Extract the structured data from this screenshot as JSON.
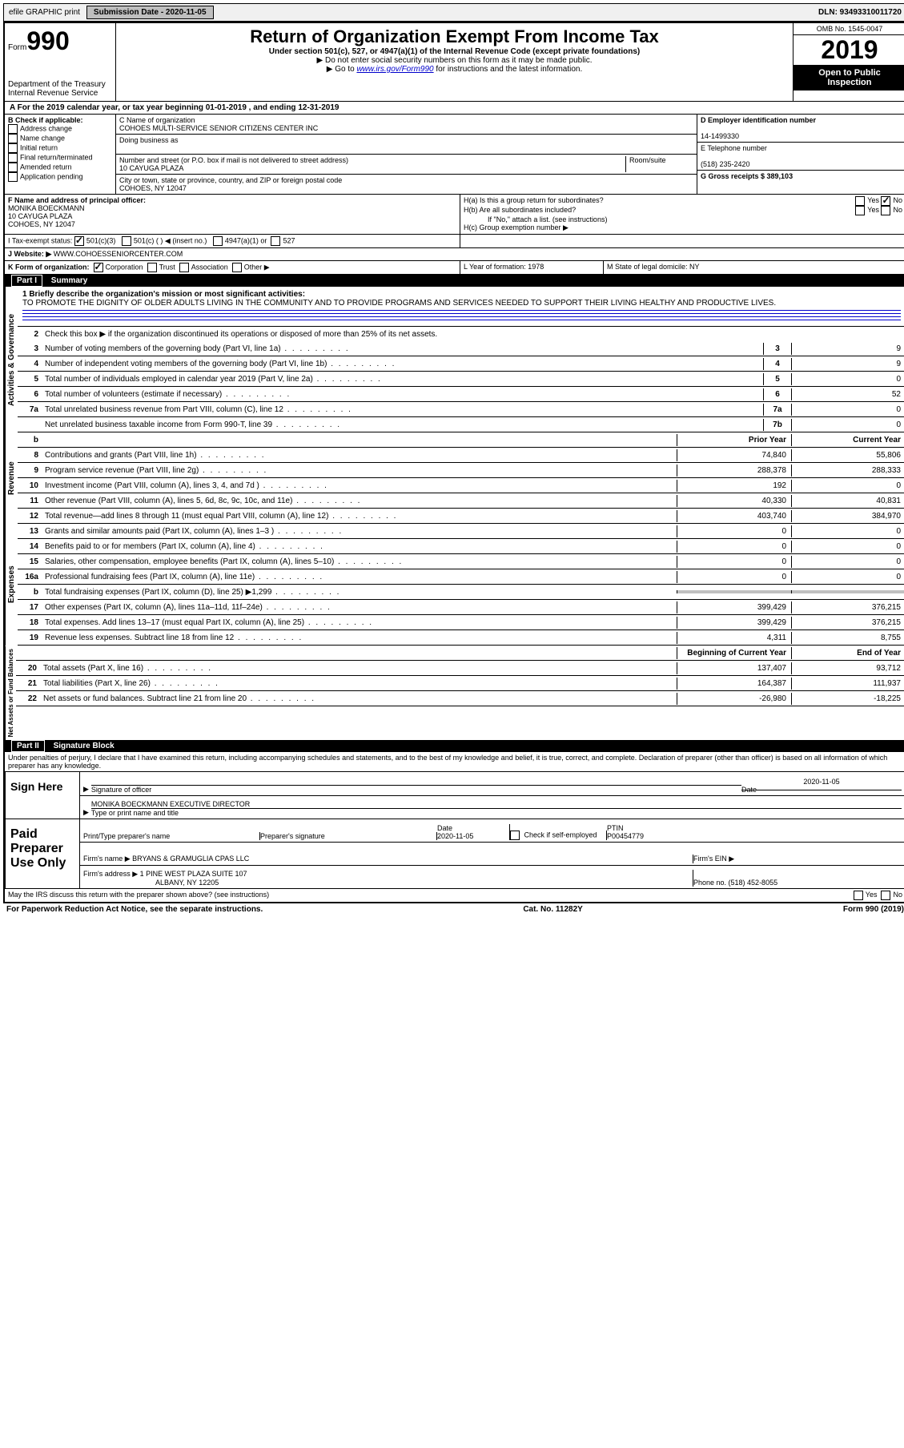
{
  "topbar": {
    "efile": "efile GRAPHIC print",
    "submission_label": "Submission Date - 2020-11-05",
    "dln": "DLN: 93493310011720"
  },
  "header": {
    "form_prefix": "Form",
    "form_number": "990",
    "dept": "Department of the Treasury\nInternal Revenue Service",
    "title": "Return of Organization Exempt From Income Tax",
    "subtitle": "Under section 501(c), 527, or 4947(a)(1) of the Internal Revenue Code (except private foundations)",
    "warn": "▶ Do not enter social security numbers on this form as it may be made public.",
    "goto_prefix": "▶ Go to ",
    "goto_link": "www.irs.gov/Form990",
    "goto_suffix": " for instructions and the latest information.",
    "omb": "OMB No. 1545-0047",
    "year": "2019",
    "open1": "Open to Public",
    "open2": "Inspection"
  },
  "line_a": "A For the 2019 calendar year, or tax year beginning 01-01-2019    , and ending 12-31-2019",
  "col_b": {
    "label": "B Check if applicable:",
    "opts": [
      "Address change",
      "Name change",
      "Initial return",
      "Final return/terminated",
      "Amended return",
      "Application pending"
    ]
  },
  "col_c": {
    "c_label": "C Name of organization",
    "name": "COHOES MULTI-SERVICE SENIOR CITIZENS CENTER INC",
    "dba_label": "Doing business as",
    "addr_label": "Number and street (or P.O. box if mail is not delivered to street address)",
    "room_label": "Room/suite",
    "addr": "10 CAYUGA PLAZA",
    "city_label": "City or town, state or province, country, and ZIP or foreign postal code",
    "city": "COHOES, NY  12047"
  },
  "col_d": {
    "d_label": "D Employer identification number",
    "ein": "14-1499330",
    "e_label": "E Telephone number",
    "phone": "(518) 235-2420",
    "g_label": "G Gross receipts $ 389,103"
  },
  "row_f": {
    "f_label": "F  Name and address of principal officer:",
    "name": "MONIKA BOECKMANN",
    "addr1": "10 CAYUGA PLAZA",
    "addr2": "COHOES, NY  12047"
  },
  "row_h": {
    "ha": "H(a)  Is this a group return for subordinates?",
    "hb": "H(b)  Are all subordinates included?",
    "hb_note": "If \"No,\" attach a list. (see instructions)",
    "hc": "H(c)  Group exemption number ▶",
    "yes": "Yes",
    "no": "No"
  },
  "row_i": {
    "label": "I   Tax-exempt status:",
    "opt1": "501(c)(3)",
    "opt2": "501(c) (   ) ◀ (insert no.)",
    "opt3": "4947(a)(1) or",
    "opt4": "527"
  },
  "row_j": {
    "label": "J    Website: ▶",
    "val": "WWW.COHOESSENIORCENTER.COM"
  },
  "row_k": {
    "label": "K Form of organization:",
    "corp": "Corporation",
    "trust": "Trust",
    "assoc": "Association",
    "other": "Other ▶"
  },
  "row_l": {
    "l_label": "L Year of formation: 1978",
    "m_label": "M State of legal domicile: NY"
  },
  "part1": {
    "bar": "Summary",
    "part_label": "Part I",
    "q1": "1  Briefly describe the organization's mission or most significant activities:",
    "mission": "TO PROMOTE THE DIGNITY OF OLDER ADULTS LIVING IN THE COMMUNITY AND TO PROVIDE PROGRAMS AND SERVICES NEEDED TO SUPPORT THEIR LIVING HEALTHY AND PRODUCTIVE LIVES.",
    "q2": "Check this box ▶        if the organization discontinued its operations or disposed of more than 25% of its net assets.",
    "lines_ag": [
      {
        "n": "3",
        "d": "Number of voting members of the governing body (Part VI, line 1a)",
        "box": "3",
        "v": "9"
      },
      {
        "n": "4",
        "d": "Number of independent voting members of the governing body (Part VI, line 1b)",
        "box": "4",
        "v": "9"
      },
      {
        "n": "5",
        "d": "Total number of individuals employed in calendar year 2019 (Part V, line 2a)",
        "box": "5",
        "v": "0"
      },
      {
        "n": "6",
        "d": "Total number of volunteers (estimate if necessary)",
        "box": "6",
        "v": "52"
      },
      {
        "n": "7a",
        "d": "Total unrelated business revenue from Part VIII, column (C), line 12",
        "box": "7a",
        "v": "0"
      },
      {
        "n": "",
        "d": "Net unrelated business taxable income from Form 990-T, line 39",
        "box": "7b",
        "v": "0"
      }
    ],
    "hdr_prior": "Prior Year",
    "hdr_current": "Current Year",
    "revenue": [
      {
        "n": "8",
        "d": "Contributions and grants (Part VIII, line 1h)",
        "p": "74,840",
        "c": "55,806"
      },
      {
        "n": "9",
        "d": "Program service revenue (Part VIII, line 2g)",
        "p": "288,378",
        "c": "288,333"
      },
      {
        "n": "10",
        "d": "Investment income (Part VIII, column (A), lines 3, 4, and 7d )",
        "p": "192",
        "c": "0"
      },
      {
        "n": "11",
        "d": "Other revenue (Part VIII, column (A), lines 5, 6d, 8c, 9c, 10c, and 11e)",
        "p": "40,330",
        "c": "40,831"
      },
      {
        "n": "12",
        "d": "Total revenue—add lines 8 through 11 (must equal Part VIII, column (A), line 12)",
        "p": "403,740",
        "c": "384,970"
      }
    ],
    "expenses": [
      {
        "n": "13",
        "d": "Grants and similar amounts paid (Part IX, column (A), lines 1–3 )",
        "p": "0",
        "c": "0"
      },
      {
        "n": "14",
        "d": "Benefits paid to or for members (Part IX, column (A), line 4)",
        "p": "0",
        "c": "0"
      },
      {
        "n": "15",
        "d": "Salaries, other compensation, employee benefits (Part IX, column (A), lines 5–10)",
        "p": "0",
        "c": "0"
      },
      {
        "n": "16a",
        "d": "Professional fundraising fees (Part IX, column (A), line 11e)",
        "p": "0",
        "c": "0"
      },
      {
        "n": "b",
        "d": "Total fundraising expenses (Part IX, column (D), line 25) ▶1,299",
        "p": "",
        "c": "",
        "shaded": true
      },
      {
        "n": "17",
        "d": "Other expenses (Part IX, column (A), lines 11a–11d, 11f–24e)",
        "p": "399,429",
        "c": "376,215"
      },
      {
        "n": "18",
        "d": "Total expenses. Add lines 13–17 (must equal Part IX, column (A), line 25)",
        "p": "399,429",
        "c": "376,215"
      },
      {
        "n": "19",
        "d": "Revenue less expenses. Subtract line 18 from line 12",
        "p": "4,311",
        "c": "8,755"
      }
    ],
    "hdr_begin": "Beginning of Current Year",
    "hdr_end": "End of Year",
    "netassets": [
      {
        "n": "20",
        "d": "Total assets (Part X, line 16)",
        "p": "137,407",
        "c": "93,712"
      },
      {
        "n": "21",
        "d": "Total liabilities (Part X, line 26)",
        "p": "164,387",
        "c": "111,937"
      },
      {
        "n": "22",
        "d": "Net assets or fund balances. Subtract line 21 from line 20",
        "p": "-26,980",
        "c": "-18,225"
      }
    ],
    "vlab_ag": "Activities & Governance",
    "vlab_rev": "Revenue",
    "vlab_exp": "Expenses",
    "vlab_net": "Net Assets or Fund Balances"
  },
  "part2": {
    "part_label": "Part II",
    "bar": "Signature Block",
    "penalty": "Under penalties of perjury, I declare that I have examined this return, including accompanying schedules and statements, and to the best of my knowledge and belief, it is true, correct, and complete. Declaration of preparer (other than officer) is based on all information of which preparer has any knowledge.",
    "sign_here": "Sign Here",
    "sig_officer": "Signature of officer",
    "sig_date": "2020-11-05",
    "sig_date_label": "Date",
    "officer_name": "MONIKA BOECKMANN  EXECUTIVE DIRECTOR",
    "type_label": "Type or print name and title",
    "paid": "Paid Preparer Use Only",
    "prep_name_label": "Print/Type preparer's name",
    "prep_sig_label": "Preparer's signature",
    "prep_date_label": "Date",
    "prep_date": "2020-11-05",
    "check_self": "Check        if self-employed",
    "ptin_label": "PTIN",
    "ptin": "P00454779",
    "firm_name_label": "Firm's name     ▶",
    "firm_name": "BRYANS & GRAMUGLIA CPAS LLC",
    "firm_ein_label": "Firm's EIN ▶",
    "firm_addr_label": "Firm's address ▶",
    "firm_addr1": "1 PINE WEST PLAZA SUITE 107",
    "firm_addr2": "ALBANY, NY  12205",
    "phone_label": "Phone no. (518) 452-8055",
    "discuss": "May the IRS discuss this return with the preparer shown above? (see instructions)"
  },
  "footer": {
    "left": "For Paperwork Reduction Act Notice, see the separate instructions.",
    "mid": "Cat. No. 11282Y",
    "right": "Form 990 (2019)"
  }
}
